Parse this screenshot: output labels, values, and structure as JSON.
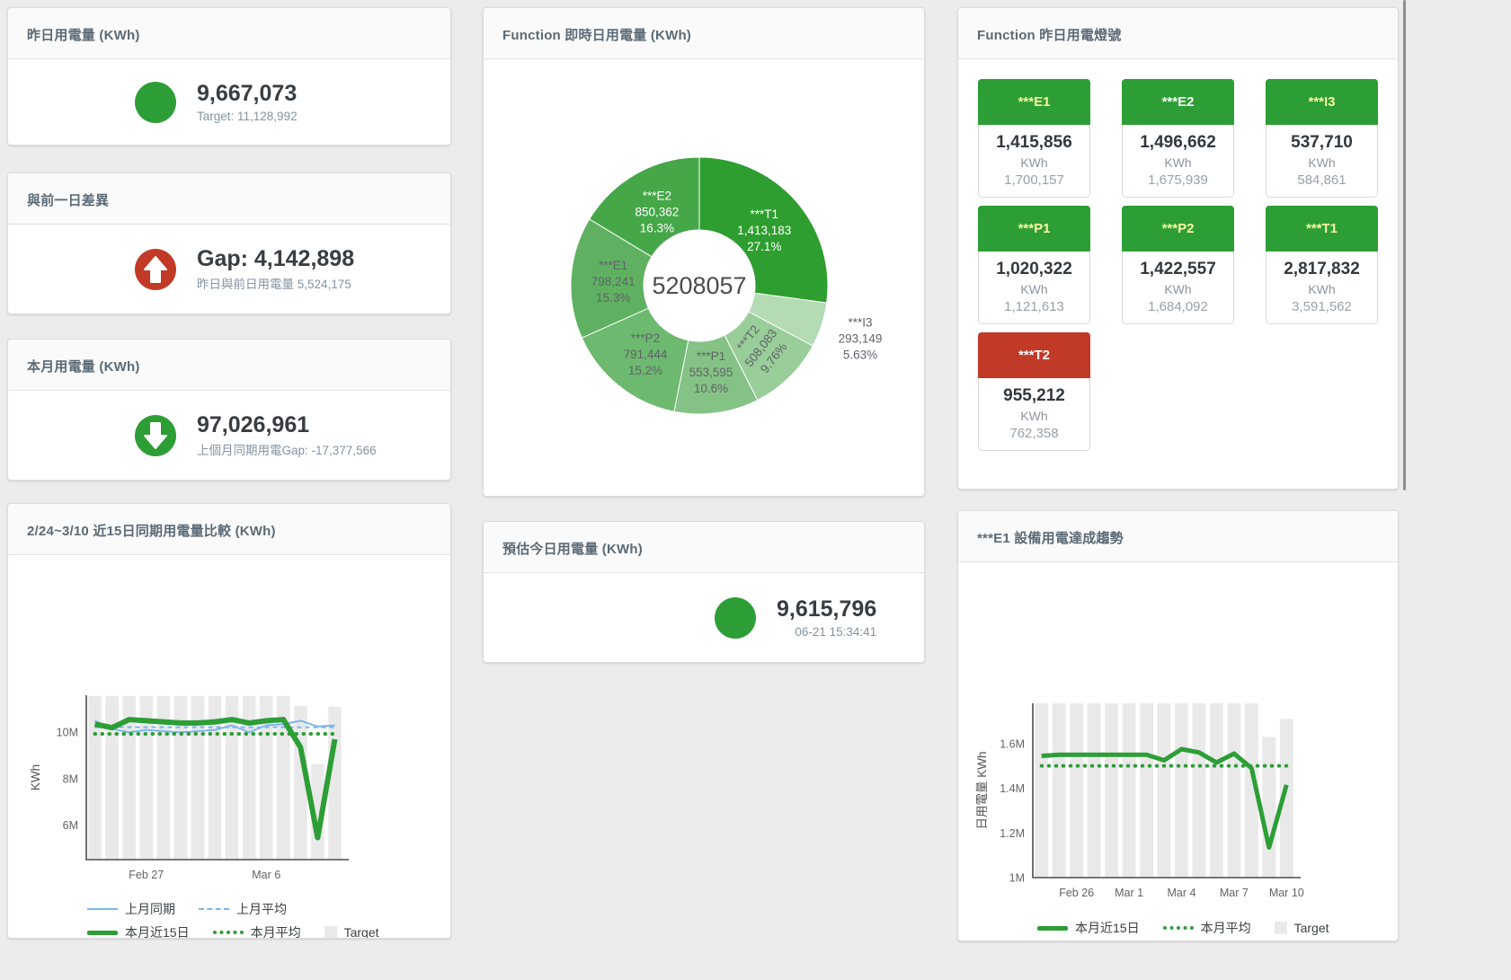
{
  "colors": {
    "green": "#2d9e36",
    "red": "#c13a27",
    "blue": "#7cb5ec",
    "bar": "#e9e9e9",
    "pale_yellow": "#fcf8a0",
    "white": "#ffffff"
  },
  "cards": {
    "yesterday": {
      "title": "昨日用電量 (KWh)",
      "value": "9,667,073",
      "sub": "Target: 11,128,992"
    },
    "day_gap": {
      "title": "與前一日差異",
      "value": "Gap: 4,142,898",
      "sub": "昨日與前日用電量 5,524,175"
    },
    "month": {
      "title": "本月用電量 (KWh)",
      "value": "97,026,961",
      "sub": "上個月同期用電Gap: -17,377,566"
    },
    "compare": {
      "title": "2/24~3/10 近15日同期用電量比較 (KWh)"
    },
    "realtime": {
      "title": "Function 即時日用電量 (KWh)"
    },
    "forecast": {
      "title": "預估今日用電量 (KWh)",
      "value": "9,615,796",
      "sub": "06-21 15:34:41"
    },
    "lights": {
      "title": "Function 昨日用電燈號",
      "tiles": [
        {
          "label": "***E1",
          "value": "1,415,856",
          "unit": "KWh",
          "target": "1,700,157",
          "status": "green",
          "label_color": "#fcf8a0"
        },
        {
          "label": "***E2",
          "value": "1,496,662",
          "unit": "KWh",
          "target": "1,675,939",
          "status": "green",
          "label_color": "#ffffff"
        },
        {
          "label": "***I3",
          "value": "537,710",
          "unit": "KWh",
          "target": "584,861",
          "status": "green",
          "label_color": "#fcf8a0"
        },
        {
          "label": "***P1",
          "value": "1,020,322",
          "unit": "KWh",
          "target": "1,121,613",
          "status": "green",
          "label_color": "#fcf8a0"
        },
        {
          "label": "***P2",
          "value": "1,422,557",
          "unit": "KWh",
          "target": "1,684,092",
          "status": "green",
          "label_color": "#fcf8a0"
        },
        {
          "label": "***T1",
          "value": "2,817,832",
          "unit": "KWh",
          "target": "3,591,562",
          "status": "green",
          "label_color": "#fcf8a0"
        },
        {
          "label": "***T2",
          "value": "955,212",
          "unit": "KWh",
          "target": "762,358",
          "status": "red",
          "label_color": "#ffffff"
        }
      ]
    },
    "trend": {
      "title": "***E1 設備用電達成趨勢"
    }
  },
  "chart_data": [
    {
      "id": "realtime-donut",
      "type": "pie",
      "donut": true,
      "title": "Function 即時日用電量 (KWh)",
      "center_total": "5208057",
      "slices": [
        {
          "name": "***T1",
          "value": 1413183,
          "display": "1,413,183",
          "pct": "27.1%",
          "color": "#2f9e30",
          "text_color": "#ffffff"
        },
        {
          "name": "***I3",
          "value": 293149,
          "display": "293,149",
          "pct": "5.63%",
          "color": "#b4dbb4",
          "text_color": "#5f6368",
          "outside": true
        },
        {
          "name": "***T2",
          "value": 508083,
          "display": "508,083",
          "pct": "9.76%",
          "color": "#99cd9a",
          "text_color": "#5f6368",
          "rotate": -52
        },
        {
          "name": "***P1",
          "value": 553595,
          "display": "553,595",
          "pct": "10.6%",
          "color": "#84c385",
          "text_color": "#5f6368"
        },
        {
          "name": "***P2",
          "value": 791444,
          "display": "791,444",
          "pct": "15.2%",
          "color": "#6db96f",
          "text_color": "#5f6368"
        },
        {
          "name": "***E1",
          "value": 798241,
          "display": "798,241",
          "pct": "15.3%",
          "color": "#5fb161",
          "text_color": "#5f6368"
        },
        {
          "name": "***E2",
          "value": 850362,
          "display": "850,362",
          "pct": "16.3%",
          "color": "#46a748",
          "text_color": "#ffffff"
        }
      ]
    },
    {
      "id": "compare-chart",
      "type": "bar+line",
      "title": "2/24~3/10 近15日同期用電量比較 (KWh)",
      "x": [
        "2/24",
        "2/25",
        "2/26",
        "2/27",
        "2/28",
        "3/1",
        "3/2",
        "3/3",
        "3/4",
        "3/5",
        "3/6",
        "3/7",
        "3/8",
        "3/9",
        "3/10"
      ],
      "xticks": [
        {
          "i": 3,
          "label": "Feb 27"
        },
        {
          "i": 10,
          "label": "Mar 6"
        }
      ],
      "ylabel": "KWh",
      "unit": "M",
      "ylim": [
        4.5,
        11.6
      ],
      "yticks": [
        {
          "v": 6,
          "label": "6M"
        },
        {
          "v": 8,
          "label": "8M"
        },
        {
          "v": 10,
          "label": "10M"
        }
      ],
      "series": [
        {
          "name": "Target",
          "type": "bar",
          "color": "#e9e9e9",
          "values": [
            11.57,
            11.57,
            11.57,
            11.57,
            11.57,
            11.57,
            11.57,
            11.57,
            11.57,
            11.57,
            11.57,
            11.57,
            11.14,
            8.63,
            11.1
          ]
        },
        {
          "name": "上月同期",
          "type": "line",
          "color": "#7cb5ec",
          "width": 2,
          "values": [
            10.5,
            10.15,
            10.0,
            10.1,
            10.05,
            10.0,
            10.05,
            10.1,
            10.3,
            10.0,
            10.3,
            10.35,
            10.5,
            10.25,
            10.3
          ]
        },
        {
          "name": "上月平均",
          "type": "line",
          "color": "#7cb5ec",
          "width": 2,
          "dash": "5 4",
          "values": [
            10.22,
            10.22,
            10.22,
            10.22,
            10.22,
            10.22,
            10.22,
            10.22,
            10.22,
            10.22,
            10.22,
            10.22,
            10.22,
            10.22,
            10.22
          ]
        },
        {
          "name": "本月近15日",
          "type": "line",
          "color": "#2d9e36",
          "width": 6,
          "values": [
            10.35,
            10.2,
            10.55,
            10.5,
            10.45,
            10.4,
            10.4,
            10.45,
            10.55,
            10.4,
            10.5,
            10.55,
            9.35,
            5.45,
            9.7
          ]
        },
        {
          "name": "本月平均",
          "type": "line",
          "color": "#2d9e36",
          "width": 4,
          "dash": "0.5 7.5",
          "round": true,
          "values": [
            9.93,
            9.93,
            9.93,
            9.93,
            9.93,
            9.93,
            9.93,
            9.93,
            9.93,
            9.93,
            9.93,
            9.93,
            9.93,
            9.93,
            9.93
          ]
        }
      ],
      "legend": [
        {
          "label": "上月同期",
          "swatch": "line"
        },
        {
          "label": "上月平均",
          "swatch": "dash"
        },
        {
          "label": "本月近15日",
          "swatch": "thick"
        },
        {
          "label": "本月平均",
          "swatch": "dots"
        },
        {
          "label": "Target",
          "swatch": "box"
        }
      ]
    },
    {
      "id": "trend-chart",
      "type": "bar+line",
      "title": "***E1 設備用電達成趨勢",
      "x": [
        "2/24",
        "2/25",
        "2/26",
        "2/27",
        "2/28",
        "3/1",
        "3/2",
        "3/3",
        "3/4",
        "3/5",
        "3/6",
        "3/7",
        "3/8",
        "3/9",
        "3/10"
      ],
      "xticks": [
        {
          "i": 2,
          "label": "Feb 26"
        },
        {
          "i": 5,
          "label": "Mar 1"
        },
        {
          "i": 8,
          "label": "Mar 4"
        },
        {
          "i": 11,
          "label": "Mar 7"
        },
        {
          "i": 14,
          "label": "Mar 10"
        }
      ],
      "ylabel": "日用電量 KWh",
      "unit": "M",
      "ylim": [
        1.0,
        1.78
      ],
      "yticks": [
        {
          "v": 1.0,
          "label": "1M"
        },
        {
          "v": 1.2,
          "label": "1.2M"
        },
        {
          "v": 1.4,
          "label": "1.4M"
        },
        {
          "v": 1.6,
          "label": "1.6M"
        }
      ],
      "series": [
        {
          "name": "Target",
          "type": "bar",
          "color": "#e9e9e9",
          "values": [
            1.78,
            1.78,
            1.78,
            1.78,
            1.78,
            1.78,
            1.78,
            1.78,
            1.78,
            1.78,
            1.78,
            1.78,
            1.78,
            1.63,
            1.71
          ]
        },
        {
          "name": "本月近15日",
          "type": "line",
          "color": "#2d9e36",
          "width": 5,
          "values": [
            1.545,
            1.55,
            1.55,
            1.55,
            1.55,
            1.55,
            1.55,
            1.525,
            1.575,
            1.56,
            1.515,
            1.555,
            1.49,
            1.135,
            1.415
          ]
        },
        {
          "name": "本月平均",
          "type": "line",
          "color": "#2d9e36",
          "width": 4,
          "dash": "0.5 7.5",
          "round": true,
          "values": [
            1.5,
            1.5,
            1.5,
            1.5,
            1.5,
            1.5,
            1.5,
            1.5,
            1.5,
            1.5,
            1.5,
            1.5,
            1.5,
            1.5,
            1.5
          ]
        }
      ],
      "legend": [
        {
          "label": "本月近15日",
          "swatch": "thick"
        },
        {
          "label": "本月平均",
          "swatch": "dots"
        },
        {
          "label": "Target",
          "swatch": "box"
        }
      ]
    }
  ]
}
